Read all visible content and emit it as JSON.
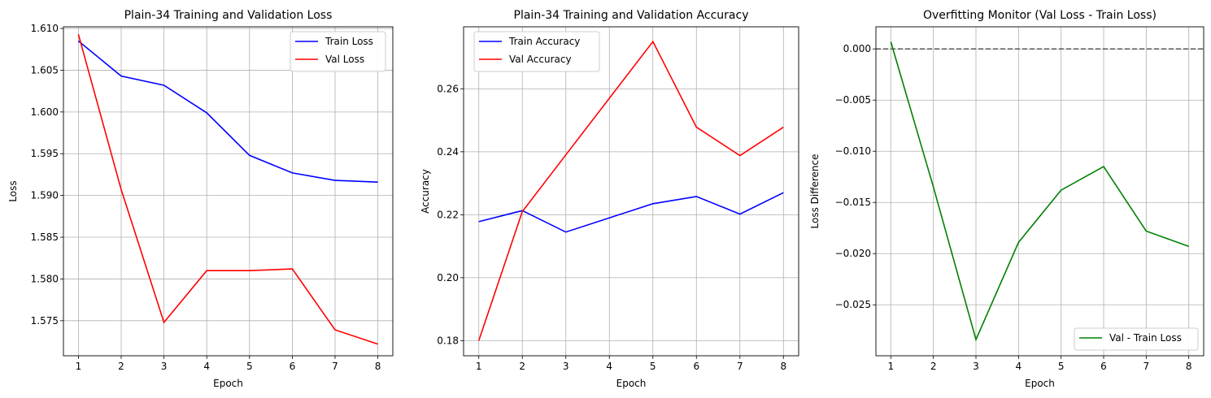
{
  "colors": {
    "train": "#0000ff",
    "val": "#ff0000",
    "diff": "#008000",
    "zero_line": "#555555",
    "grid": "#b0b0b0"
  },
  "chart_data": [
    {
      "type": "line",
      "title": "Plain-34 Training and Validation Loss",
      "xlabel": "Epoch",
      "ylabel": "Loss",
      "x": [
        1,
        2,
        3,
        4,
        5,
        6,
        7,
        8
      ],
      "xticks": [
        "1",
        "2",
        "3",
        "4",
        "5",
        "6",
        "7",
        "8"
      ],
      "yticks": [
        "1.575",
        "1.580",
        "1.585",
        "1.590",
        "1.595",
        "1.600",
        "1.605",
        "1.610"
      ],
      "ylim": [
        1.5708,
        1.6102
      ],
      "xlim": [
        0.65,
        8.35
      ],
      "grid": true,
      "legend": "top-right",
      "series": [
        {
          "name": "Train Loss",
          "color": "#0000ff",
          "values": [
            1.6085,
            1.6043,
            1.6032,
            1.5999,
            1.5948,
            1.5927,
            1.5918,
            1.5916
          ]
        },
        {
          "name": "Val Loss",
          "color": "#ff0000",
          "values": [
            1.6093,
            1.5907,
            1.5748,
            1.581,
            1.581,
            1.5812,
            1.5739,
            1.5722
          ]
        }
      ]
    },
    {
      "type": "line",
      "title": "Plain-34 Training and Validation Accuracy",
      "xlabel": "Epoch",
      "ylabel": "Accuracy",
      "x": [
        1,
        2,
        3,
        4,
        5,
        6,
        7,
        8
      ],
      "xticks": [
        "1",
        "2",
        "3",
        "4",
        "5",
        "6",
        "7",
        "8"
      ],
      "yticks": [
        "0.18",
        "0.20",
        "0.22",
        "0.24",
        "0.26"
      ],
      "ylim": [
        0.1752,
        0.2797
      ],
      "xlim": [
        0.65,
        8.35
      ],
      "grid": true,
      "legend": "top-left",
      "series": [
        {
          "name": "Train Accuracy",
          "color": "#0000ff",
          "values": [
            0.2178,
            0.2213,
            0.2145,
            0.219,
            0.2235,
            0.2258,
            0.2202,
            0.227
          ]
        },
        {
          "name": "Val Accuracy",
          "color": "#ff0000",
          "values": [
            0.18,
            0.221,
            0.239,
            0.257,
            0.275,
            0.2478,
            0.2388,
            0.2478
          ]
        }
      ]
    },
    {
      "type": "line",
      "title": "Overfitting Monitor (Val Loss - Train Loss)",
      "xlabel": "Epoch",
      "ylabel": "Loss Difference",
      "x": [
        1,
        2,
        3,
        4,
        5,
        6,
        7,
        8
      ],
      "xticks": [
        "1",
        "2",
        "3",
        "4",
        "5",
        "6",
        "7",
        "8"
      ],
      "yticks": [
        "0.000",
        "−0.005",
        "−0.010",
        "−0.015",
        "−0.020",
        "−0.025"
      ],
      "ytick_values": [
        0.0,
        -0.005,
        -0.01,
        -0.015,
        -0.02,
        -0.025
      ],
      "ylim": [
        -0.02998,
        0.00216
      ],
      "xlim": [
        0.65,
        8.35
      ],
      "grid": true,
      "legend": "bottom-right",
      "reference_line": {
        "y": 0.0,
        "style": "dashed"
      },
      "series": [
        {
          "name": "Val - Train Loss",
          "color": "#008000",
          "values": [
            0.0007,
            -0.0135,
            -0.0284,
            -0.0189,
            -0.0138,
            -0.0115,
            -0.0178,
            -0.0193
          ]
        }
      ]
    }
  ]
}
